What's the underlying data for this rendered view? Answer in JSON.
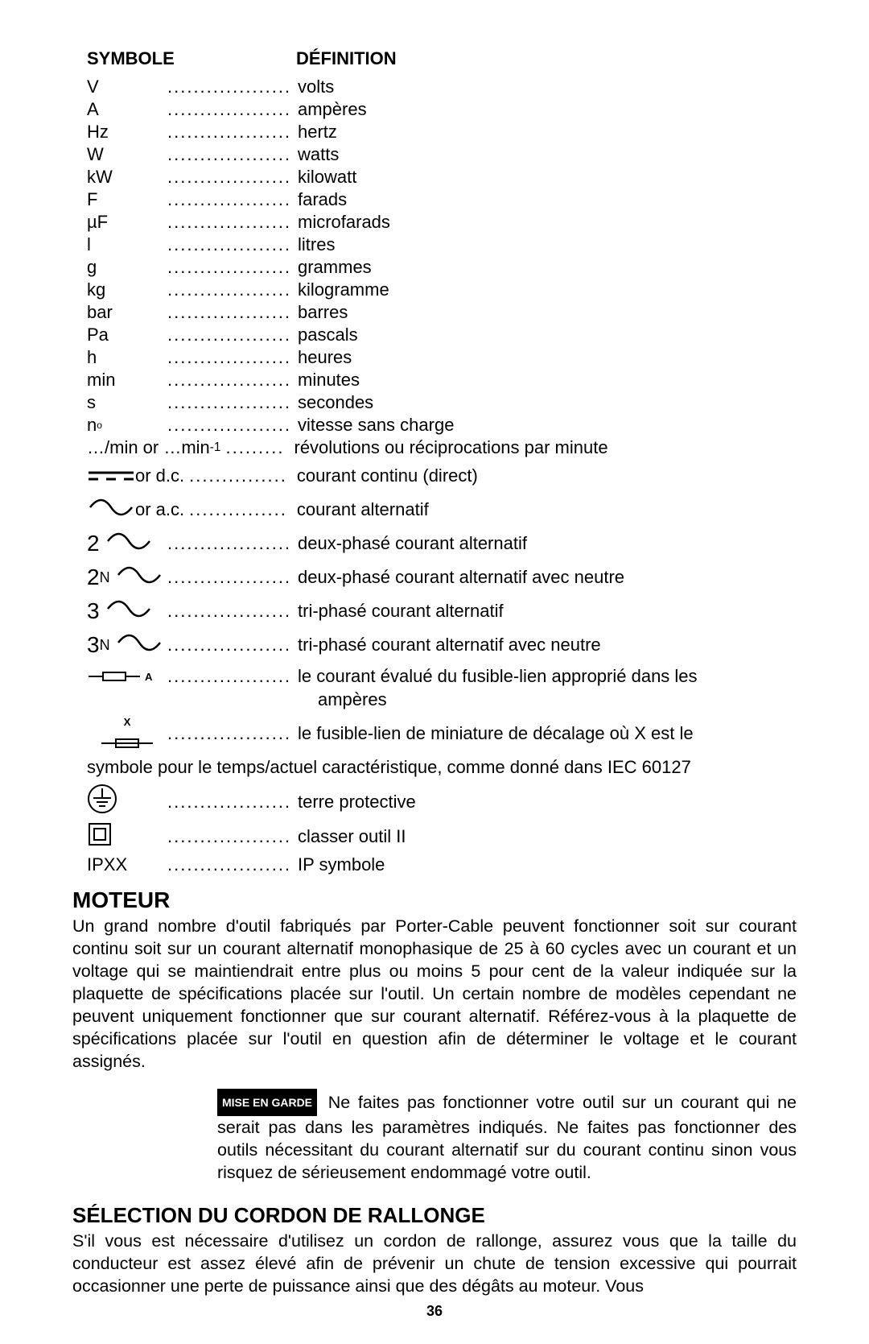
{
  "header": {
    "symbole": "SYMBOLE",
    "definition": "DÉFINITION"
  },
  "rows_simple": [
    {
      "sym": "V",
      "def": "volts"
    },
    {
      "sym": "A",
      "def": "ampères"
    },
    {
      "sym": "Hz",
      "def": "hertz"
    },
    {
      "sym": "W",
      "def": "watts"
    },
    {
      "sym": "kW",
      "def": "kilowatt"
    },
    {
      "sym": "F",
      "def": "farads"
    },
    {
      "sym": "µF",
      "def": "microfarads"
    },
    {
      "sym": "l",
      "def": "litres"
    },
    {
      "sym": "g",
      "def": "grammes"
    },
    {
      "sym": "kg",
      "def": "kilogramme"
    },
    {
      "sym": "bar",
      "def": "barres"
    },
    {
      "sym": "Pa",
      "def": "pascals"
    },
    {
      "sym": "h",
      "def": "heures"
    },
    {
      "sym": "min",
      "def": "minutes"
    },
    {
      "sym": "s",
      "def": "secondes"
    }
  ],
  "n0_def": "vitesse sans charge",
  "permin_sym_a": "…/min  or …min",
  "permin_def": "révolutions ou réciprocations par minute",
  "dc_tail": " or d.c.",
  "dc_def": "courant continu (direct)",
  "ac_tail": " or a.c.",
  "ac_def": "courant alternatif",
  "phase2": "2",
  "phase2_def": "deux-phasé courant alternatif",
  "phase2n_a": "2",
  "phase2n_b": "N",
  "phase2n_def": "deux-phasé courant alternatif avec neutre",
  "phase3": "3",
  "phase3_def": "tri-phasé courant alternatif",
  "phase3n_a": "3",
  "phase3n_b": "N",
  "phase3n_def": "tri-phasé courant alternatif avec neutre",
  "fuseA_def": "le courant évalué du fusible-lien approprié dans les",
  "fuseA_def2": "ampères",
  "fuseX_def": "le fusible-lien de miniature de décalage où X est le",
  "fuseX_cont": "symbole pour le temps/actuel caractéristique, comme donné dans IEC 60127",
  "earth_def": "terre protective",
  "class2_def": "classer outil II",
  "ipxx_sym": "IPXX",
  "ipxx_def": "IP symbole",
  "moteur_title": "MOTEUR",
  "moteur_body": "Un grand nombre d'outil fabriqués par Porter-Cable peuvent fonctionner soit sur courant continu soit sur un courant alternatif monophasique de 25 à 60 cycles avec un courant et un voltage qui se maintiendrait entre plus ou moins 5 pour cent de la valeur indiquée sur la plaquette de spécifications placée sur l'outil. Un certain nombre de modèles cependant ne peuvent uniquement fonctionner que sur courant alternatif. Référez-vous à la plaquette de spécifications placée sur l'outil en question afin de déterminer le voltage et le courant assignés.",
  "warning_chip": "MISE EN GARDE",
  "warning_body": " Ne faites pas fonctionner votre outil sur un courant qui ne serait pas dans les paramètres indiqués. Ne faites pas fonctionner des outils nécessitant du courant alternatif sur du courant continu sinon vous risquez de sérieusement endommagé votre outil.",
  "cordon_title": "SÉLECTION DU CORDON DE RALLONGE",
  "cordon_body": "S'il vous est nécessaire d'utilisez un cordon de rallonge, assurez vous que la taille du conducteur est assez élevé afin de prévenir un chute de tension excessive qui pourrait occasionner une perte de puissance ainsi que des dégâts au moteur. Vous",
  "pagenum": "36",
  "dots": "........................",
  "dots_short": "...............",
  "dots_med": "........."
}
